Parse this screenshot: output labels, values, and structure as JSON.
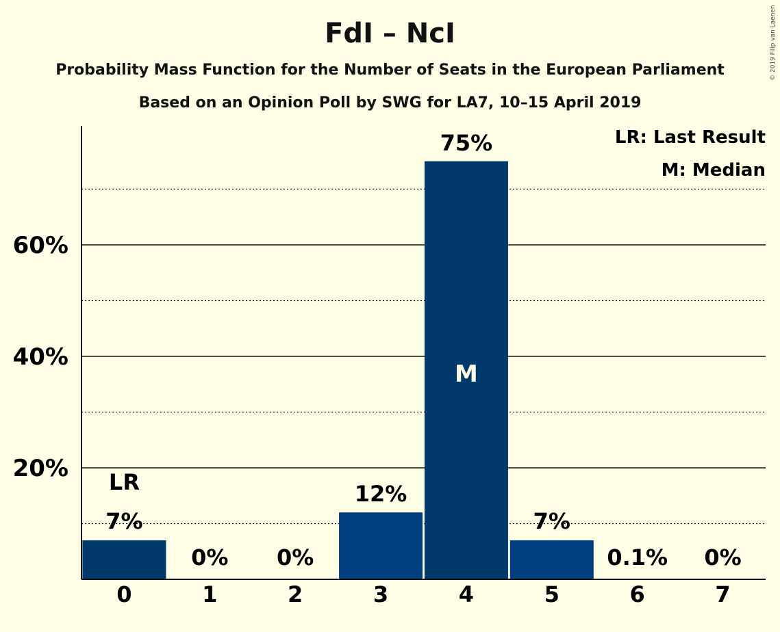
{
  "chart_data": {
    "type": "bar",
    "title": "FdI – NcI",
    "subtitle": "Probability Mass Function for the Number of Seats in the European Parliament",
    "subtitle2": "Based on an Opinion Poll by SWG for LA7, 10–15 April 2019",
    "copyright": "© 2019 Filip van Laenen",
    "categories": [
      "0",
      "1",
      "2",
      "3",
      "4",
      "5",
      "6",
      "7"
    ],
    "values": [
      7,
      0,
      0,
      12,
      75,
      7,
      0.1,
      0
    ],
    "value_labels": [
      "7%",
      "0%",
      "0%",
      "12%",
      "75%",
      "7%",
      "0.1%",
      "0%"
    ],
    "bar_colors": [
      "#003a6b",
      "#003a6b",
      "#003a6b",
      "#003f80",
      "#003a6b",
      "#003f80",
      "#003a6b",
      "#003a6b"
    ],
    "ylim": [
      0,
      80
    ],
    "yticks": [
      20,
      40,
      60
    ],
    "ytick_labels": [
      "20%",
      "40%",
      "60%"
    ],
    "minor_gridlines": [
      10,
      30,
      50,
      70
    ],
    "last_result": {
      "category": "0",
      "label": "LR"
    },
    "median": {
      "category": "4",
      "label": "M"
    },
    "legend": [
      "LR: Last Result",
      "M: Median"
    ],
    "legend_position": "top-right"
  }
}
